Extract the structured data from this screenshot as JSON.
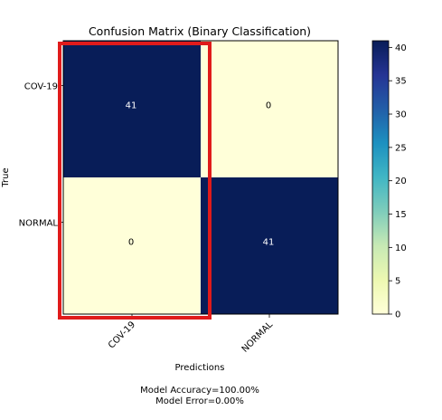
{
  "chart_data": {
    "type": "heatmap",
    "title": "Confusion Matrix (Binary Classification)",
    "xlabel": "Predictions",
    "ylabel": "True",
    "x_categories": [
      "COV-19",
      "NORMAL"
    ],
    "y_categories": [
      "COV-19",
      "NORMAL"
    ],
    "values": [
      [
        41,
        0
      ],
      [
        0,
        41
      ]
    ],
    "colormap": "YlGnBu",
    "colorbar": {
      "min": 0,
      "max": 41,
      "ticks": [
        0,
        5,
        10,
        15,
        20,
        25,
        30,
        35,
        40
      ]
    },
    "grid": false,
    "legend": "colorbar-right",
    "highlight": {
      "description_target": "predicted COV-19 column",
      "color": "#e01b1b"
    },
    "colors": {
      "low": "#ffffd9",
      "high": "#081d58",
      "text_on_dark": "#ffffff",
      "text_on_light": "#000000"
    }
  },
  "footer": {
    "accuracy": "Model Accuracy=100.00%",
    "error": "Model Error=0.00%"
  }
}
